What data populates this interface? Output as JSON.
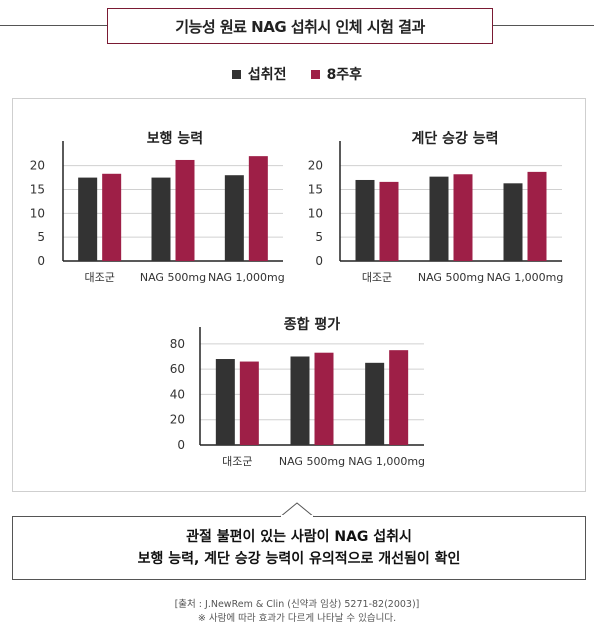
{
  "header": {
    "title": "기능성 원료 NAG 섭취시 인체 시험 결과"
  },
  "legend": [
    {
      "label": "섭취전",
      "color": "#333333"
    },
    {
      "label": "8주후",
      "color": "#9e1f47"
    }
  ],
  "chart_data": [
    {
      "type": "bar",
      "title": "보행 능력",
      "categories": [
        "대조군",
        "NAG 500mg",
        "NAG 1,000mg"
      ],
      "series": [
        {
          "name": "섭취전",
          "values": [
            17.5,
            17.5,
            18.0
          ]
        },
        {
          "name": "8주후",
          "values": [
            18.3,
            21.2,
            22.0
          ]
        }
      ],
      "yticks": [
        0,
        5,
        10,
        15,
        20
      ],
      "ylim": [
        0,
        23.5
      ]
    },
    {
      "type": "bar",
      "title": "계단 승강 능력",
      "categories": [
        "대조군",
        "NAG 500mg",
        "NAG 1,000mg"
      ],
      "series": [
        {
          "name": "섭취전",
          "values": [
            17.0,
            17.7,
            16.3
          ]
        },
        {
          "name": "8주후",
          "values": [
            16.6,
            18.2,
            18.7
          ]
        }
      ],
      "yticks": [
        0,
        5,
        10,
        15,
        20
      ],
      "ylim": [
        0,
        23.5
      ]
    },
    {
      "type": "bar",
      "title": "종합 평가",
      "categories": [
        "대조군",
        "NAG 500mg",
        "NAG 1,000mg"
      ],
      "series": [
        {
          "name": "섭취전",
          "values": [
            68,
            70,
            65
          ]
        },
        {
          "name": "8주후",
          "values": [
            66,
            73,
            75
          ]
        }
      ],
      "yticks": [
        0,
        20,
        40,
        60,
        80
      ],
      "ylim": [
        0,
        87
      ]
    }
  ],
  "summary": {
    "line1": "관절 불편이 있는 사람이 NAG 섭취시",
    "line2": "보행 능력, 계단 승강 능력이 유의적으로 개선됨이 확인"
  },
  "source": {
    "line1": "[출처 : J.NewRem & Clin (신약과 임상) 5271-82(2003)]",
    "line2": "※ 사람에 따라 효과가 다르게 나타날 수 있습니다."
  }
}
